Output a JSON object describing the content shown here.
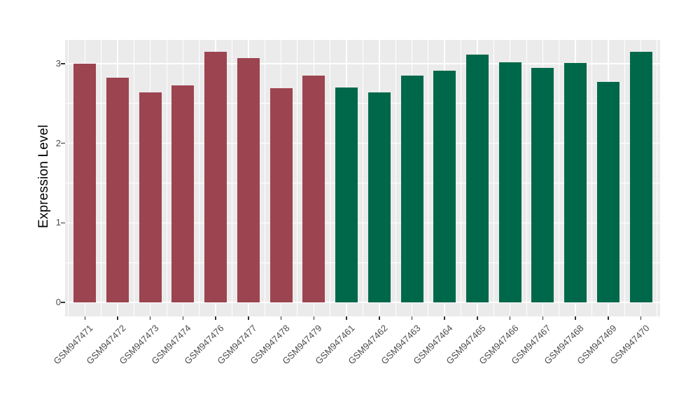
{
  "chart_data": {
    "type": "bar",
    "title": "",
    "xlabel": "",
    "ylabel": "Expression Level",
    "categories": [
      "GSM947471",
      "GSM947472",
      "GSM947473",
      "GSM947474",
      "GSM947476",
      "GSM947477",
      "GSM947478",
      "GSM947479",
      "GSM947461",
      "GSM947462",
      "GSM947463",
      "GSM947464",
      "GSM947465",
      "GSM947466",
      "GSM947467",
      "GSM947468",
      "GSM947469",
      "GSM947470"
    ],
    "values": [
      3.0,
      2.82,
      2.64,
      2.73,
      3.15,
      3.07,
      2.69,
      2.85,
      2.7,
      2.64,
      2.85,
      2.91,
      3.11,
      3.02,
      2.95,
      3.01,
      2.77,
      3.15
    ],
    "group_index": [
      0,
      0,
      0,
      0,
      0,
      0,
      0,
      0,
      1,
      1,
      1,
      1,
      1,
      1,
      1,
      1,
      1,
      1
    ],
    "group_colors": [
      "#9C4450",
      "#00684A"
    ],
    "yticks": [
      0,
      1,
      2,
      3
    ],
    "y_minor_ticks": [
      0.5,
      1.5,
      2.5
    ],
    "ylim": [
      0,
      3.33
    ],
    "legend": "none",
    "grid": "major and minor white gridlines on gray panel",
    "style": {
      "panel_bg": "#EBEBEB",
      "grid_color": "#FFFFFF",
      "tick_color": "#333333",
      "axis_label_color": "#4D4D4D",
      "title_color": "#000000",
      "x_label_angle_deg": 45
    }
  }
}
